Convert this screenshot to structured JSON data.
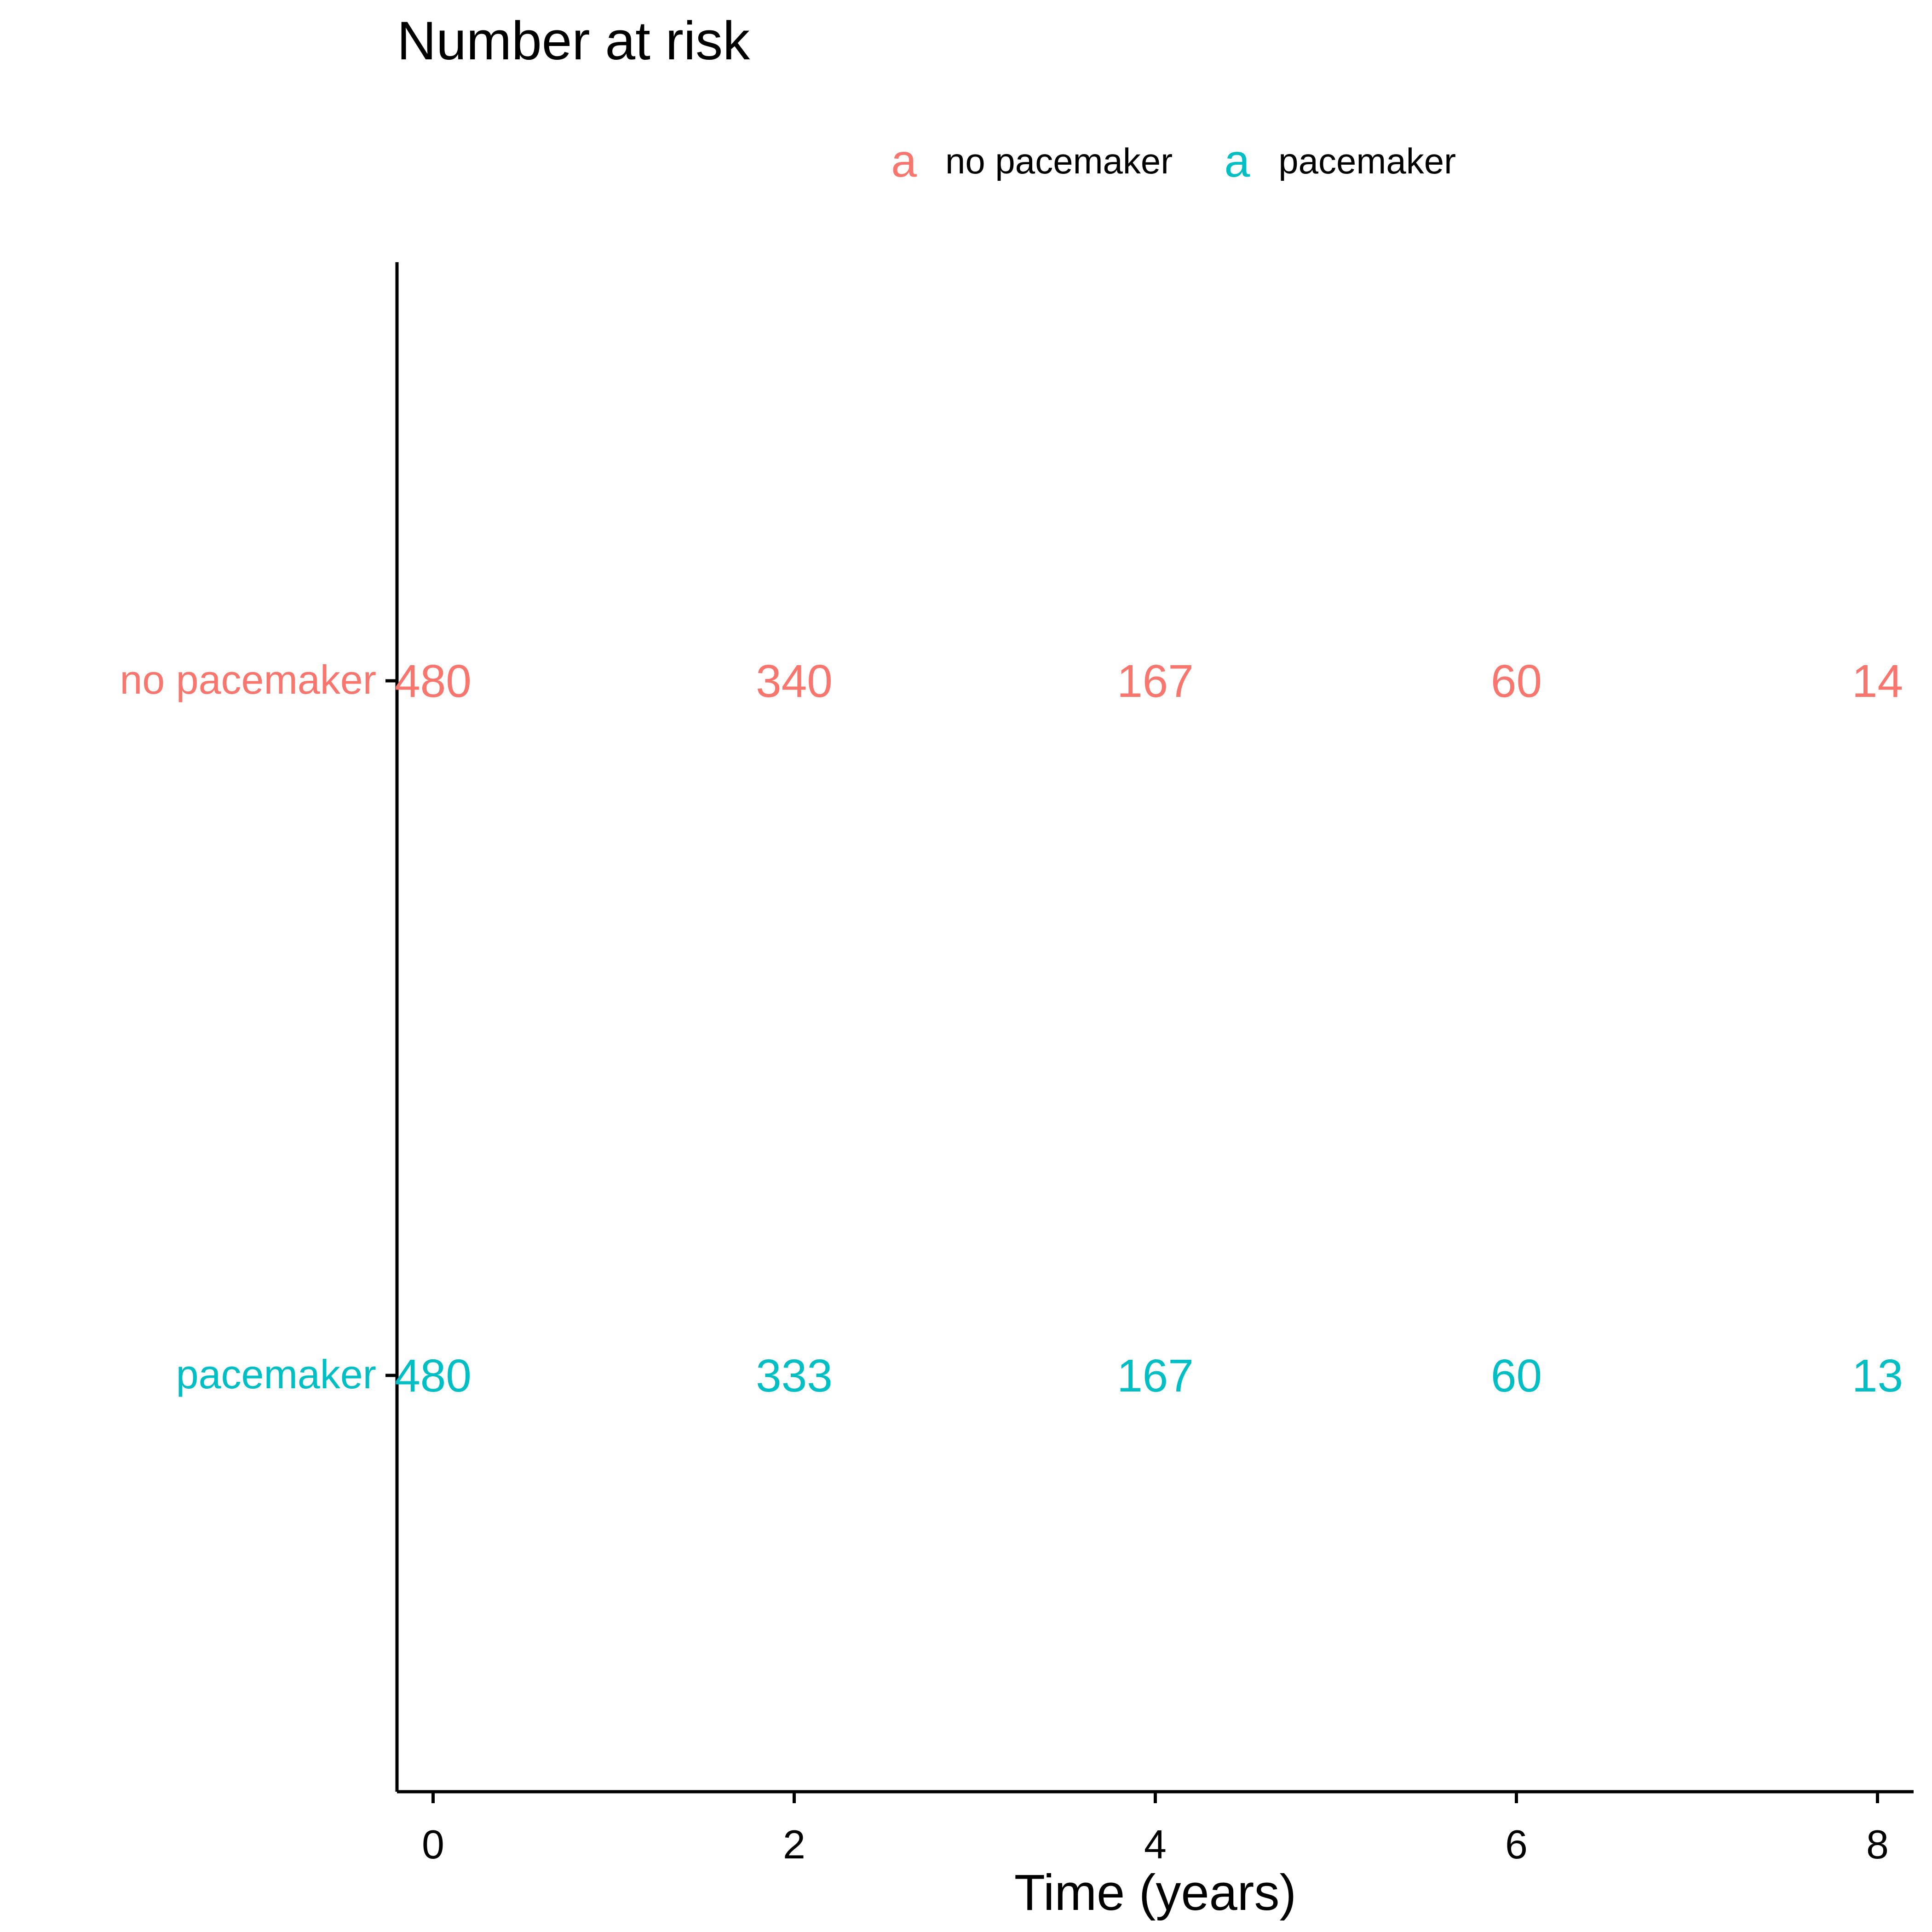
{
  "chart_data": {
    "type": "table",
    "title": "Number at risk",
    "xlabel": "Time (years)",
    "ylabel": "",
    "xlim": [
      -0.2,
      8.2
    ],
    "x_ticks": [
      0,
      2,
      4,
      6,
      8
    ],
    "x_tick_labels": [
      "0",
      "2",
      "4",
      "6",
      "8"
    ],
    "grid": false,
    "legend_placement": "top",
    "legend": [
      {
        "key": "a",
        "label": "no pacemaker",
        "color": "#F8766D"
      },
      {
        "key": "a",
        "label": "pacemaker",
        "color": "#00BFC4"
      }
    ],
    "categories": [
      "no pacemaker",
      "pacemaker"
    ],
    "x": [
      0,
      2,
      4,
      6,
      8
    ],
    "series": [
      {
        "name": "no pacemaker",
        "color": "#F8766D",
        "values": [
          480,
          340,
          167,
          60,
          14
        ]
      },
      {
        "name": "pacemaker",
        "color": "#00BFC4",
        "values": [
          480,
          333,
          167,
          60,
          13
        ]
      }
    ]
  }
}
